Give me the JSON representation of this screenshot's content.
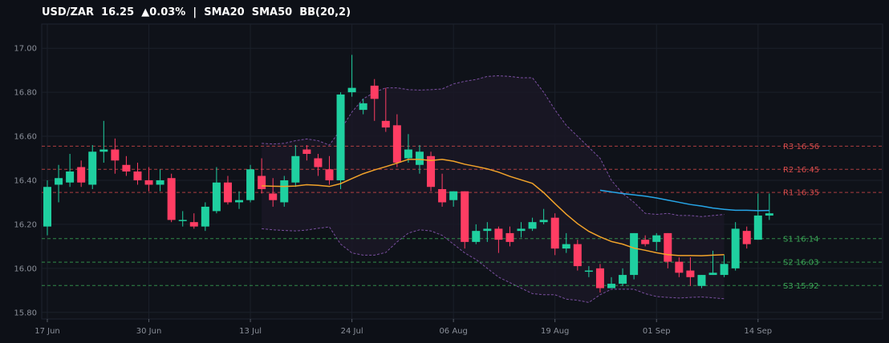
{
  "header": {
    "pair": "USD/ZAR",
    "price": "16.25",
    "change": "▲0.03%",
    "sep": "|",
    "ind1": "SMA20",
    "ind2": "SMA50",
    "ind3": "BB(20,2)"
  },
  "colors": {
    "bg": "#0d1017",
    "up": "#1fd0a0",
    "down": "#ff3d63",
    "sma20": "#f2a32a",
    "sma50": "#26a6e8",
    "bb": "#7a4fa0",
    "resist": "#d64a4a",
    "support": "#3aa856"
  },
  "chart_data": {
    "type": "candlestick",
    "ylim": [
      15.77,
      17.11
    ],
    "y_ticks": [
      "17.00",
      "16.80",
      "16.60",
      "16.40",
      "16.20",
      "16.00",
      "15.80"
    ],
    "x_ticks": [
      {
        "i": 0,
        "label": "17 Jun"
      },
      {
        "i": 9,
        "label": "30 Jun"
      },
      {
        "i": 18,
        "label": "13 Jul"
      },
      {
        "i": 27,
        "label": "24 Jul"
      },
      {
        "i": 36,
        "label": "06 Aug"
      },
      {
        "i": 45,
        "label": "19 Aug"
      },
      {
        "i": 54,
        "label": "01 Sep"
      },
      {
        "i": 63,
        "label": "14 Sep"
      }
    ],
    "ohlc": [
      [
        16.19,
        16.4,
        16.15,
        16.37
      ],
      [
        16.38,
        16.47,
        16.3,
        16.41
      ],
      [
        16.39,
        16.52,
        16.37,
        16.44
      ],
      [
        16.46,
        16.49,
        16.37,
        16.39
      ],
      [
        16.38,
        16.56,
        16.36,
        16.53
      ],
      [
        16.53,
        16.67,
        16.48,
        16.54
      ],
      [
        16.54,
        16.59,
        16.43,
        16.49
      ],
      [
        16.47,
        16.51,
        16.42,
        16.44
      ],
      [
        16.44,
        16.48,
        16.38,
        16.4
      ],
      [
        16.4,
        16.46,
        16.35,
        16.38
      ],
      [
        16.38,
        16.45,
        16.35,
        16.4
      ],
      [
        16.41,
        16.43,
        16.21,
        16.22
      ],
      [
        16.22,
        16.26,
        16.19,
        16.22
      ],
      [
        16.21,
        16.25,
        16.18,
        16.19
      ],
      [
        16.19,
        16.3,
        16.17,
        16.28
      ],
      [
        16.26,
        16.46,
        16.25,
        16.39
      ],
      [
        16.39,
        16.42,
        16.29,
        16.3
      ],
      [
        16.3,
        16.35,
        16.27,
        16.31
      ],
      [
        16.31,
        16.47,
        16.3,
        16.45
      ],
      [
        16.42,
        16.5,
        16.34,
        16.36
      ],
      [
        16.34,
        16.41,
        16.28,
        16.31
      ],
      [
        16.3,
        16.42,
        16.28,
        16.4
      ],
      [
        16.39,
        16.56,
        16.37,
        16.51
      ],
      [
        16.54,
        16.56,
        16.49,
        16.52
      ],
      [
        16.5,
        16.52,
        16.42,
        16.46
      ],
      [
        16.45,
        16.51,
        16.38,
        16.4
      ],
      [
        16.4,
        16.8,
        16.36,
        16.79
      ],
      [
        16.8,
        16.97,
        16.78,
        16.82
      ],
      [
        16.72,
        16.77,
        16.7,
        16.75
      ],
      [
        16.83,
        16.86,
        16.67,
        16.77
      ],
      [
        16.67,
        16.82,
        16.62,
        16.64
      ],
      [
        16.65,
        16.7,
        16.46,
        16.48
      ],
      [
        16.5,
        16.61,
        16.48,
        16.54
      ],
      [
        16.47,
        16.56,
        16.43,
        16.53
      ],
      [
        16.51,
        16.53,
        16.35,
        16.37
      ],
      [
        16.36,
        16.43,
        16.28,
        16.3
      ],
      [
        16.31,
        16.35,
        16.28,
        16.35
      ],
      [
        16.35,
        16.35,
        16.09,
        16.12
      ],
      [
        16.12,
        16.2,
        16.11,
        16.17
      ],
      [
        16.17,
        16.21,
        16.12,
        16.18
      ],
      [
        16.18,
        16.19,
        16.07,
        16.13
      ],
      [
        16.16,
        16.19,
        16.1,
        16.12
      ],
      [
        16.17,
        16.21,
        16.14,
        16.18
      ],
      [
        16.18,
        16.23,
        16.17,
        16.21
      ],
      [
        16.21,
        16.27,
        16.2,
        16.22
      ],
      [
        16.23,
        16.25,
        16.06,
        16.09
      ],
      [
        16.09,
        16.16,
        16.07,
        16.11
      ],
      [
        16.11,
        16.13,
        15.99,
        16.01
      ],
      [
        15.99,
        16.01,
        15.96,
        15.99
      ],
      [
        16.0,
        16.02,
        15.89,
        15.91
      ],
      [
        15.91,
        15.96,
        15.91,
        15.93
      ],
      [
        15.93,
        16.0,
        15.92,
        15.97
      ],
      [
        15.97,
        16.16,
        15.95,
        16.16
      ],
      [
        16.13,
        16.15,
        16.1,
        16.11
      ],
      [
        16.12,
        16.16,
        16.08,
        16.15
      ],
      [
        16.16,
        16.16,
        16.0,
        16.03
      ],
      [
        16.03,
        16.05,
        15.96,
        15.98
      ],
      [
        15.99,
        16.05,
        15.92,
        15.96
      ],
      [
        15.92,
        15.97,
        15.91,
        15.97
      ],
      [
        15.97,
        16.08,
        15.97,
        15.98
      ],
      [
        15.97,
        16.06,
        15.96,
        16.02
      ],
      [
        16.0,
        16.21,
        15.99,
        16.18
      ],
      [
        16.17,
        16.19,
        16.09,
        16.11
      ],
      [
        16.13,
        16.34,
        16.13,
        16.24
      ],
      [
        16.24,
        16.34,
        16.22,
        16.25
      ]
    ],
    "sma20": {
      "start": 19,
      "values": [
        16.375,
        16.373,
        16.372,
        16.374,
        16.38,
        16.377,
        16.372,
        16.385,
        16.408,
        16.43,
        16.447,
        16.462,
        16.478,
        16.495,
        16.495,
        16.49,
        16.495,
        16.487,
        16.473,
        16.463,
        16.452,
        16.437,
        16.418,
        16.402,
        16.386,
        16.344,
        16.294,
        16.246,
        16.203,
        16.168,
        16.143,
        16.122,
        16.11,
        16.092,
        16.082,
        16.071,
        16.062,
        16.058,
        16.058,
        16.057,
        16.06,
        16.062
      ]
    },
    "sma50": {
      "start": 49,
      "values": [
        16.355,
        16.347,
        16.34,
        16.334,
        16.328,
        16.32,
        16.31,
        16.3,
        16.29,
        16.283,
        16.274,
        16.268,
        16.264,
        16.264,
        16.262,
        16.263
      ]
    },
    "bb_upper": {
      "start": 19,
      "values": [
        16.568,
        16.565,
        16.568,
        16.58,
        16.588,
        16.58,
        16.56,
        16.63,
        16.71,
        16.77,
        16.8,
        16.82,
        16.82,
        16.812,
        16.81,
        16.812,
        16.815,
        16.838,
        16.85,
        16.858,
        16.872,
        16.875,
        16.872,
        16.866,
        16.866,
        16.8,
        16.72,
        16.65,
        16.6,
        16.55,
        16.5,
        16.4,
        16.34,
        16.3,
        16.25,
        16.245,
        16.25,
        16.24,
        16.24,
        16.235,
        16.24,
        16.245
      ]
    },
    "bb_lower": {
      "start": 19,
      "values": [
        16.18,
        16.175,
        16.172,
        16.17,
        16.174,
        16.182,
        16.188,
        16.11,
        16.07,
        16.06,
        16.06,
        16.072,
        16.12,
        16.16,
        16.175,
        16.17,
        16.15,
        16.11,
        16.07,
        16.04,
        16.0,
        15.96,
        15.935,
        15.91,
        15.885,
        15.88,
        15.88,
        15.86,
        15.855,
        15.845,
        15.88,
        15.905,
        15.905,
        15.905,
        15.885,
        15.872,
        15.868,
        15.865,
        15.868,
        15.87,
        15.866,
        15.862
      ]
    },
    "levels": [
      {
        "kind": "resist",
        "value": 16.555,
        "label": "R3 16.56"
      },
      {
        "kind": "resist",
        "value": 16.45,
        "label": "R2 16.45"
      },
      {
        "kind": "resist",
        "value": 16.345,
        "label": "R1 16.35"
      },
      {
        "kind": "support",
        "value": 16.135,
        "label": "S1 16.14"
      },
      {
        "kind": "support",
        "value": 16.028,
        "label": "S2 16.03"
      },
      {
        "kind": "support",
        "value": 15.922,
        "label": "S3 15.92"
      }
    ]
  }
}
